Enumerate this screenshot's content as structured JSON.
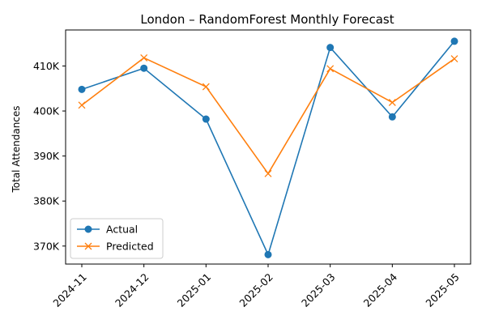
{
  "chart_data": {
    "type": "line",
    "title": "London – RandomForest Monthly Forecast",
    "xlabel": "",
    "ylabel": "Total Attendances",
    "categories": [
      "2024-11",
      "2024-12",
      "2025-01",
      "2025-02",
      "2025-03",
      "2025-04",
      "2025-05"
    ],
    "ylim": [
      366000,
      418000
    ],
    "yticks": [
      370000,
      380000,
      390000,
      400000,
      410000
    ],
    "ytick_labels": [
      "370K",
      "380K",
      "390K",
      "400K",
      "410K"
    ],
    "grid": false,
    "legend_position": "lower-left",
    "series": [
      {
        "name": "Actual",
        "marker": "circle",
        "color": "#1f77b4",
        "values": [
          404800,
          409500,
          398200,
          368100,
          414100,
          398700,
          415500
        ]
      },
      {
        "name": "Predicted",
        "marker": "x",
        "color": "#ff7f0e",
        "values": [
          401300,
          411800,
          405400,
          386100,
          409400,
          401900,
          411600
        ]
      }
    ]
  }
}
